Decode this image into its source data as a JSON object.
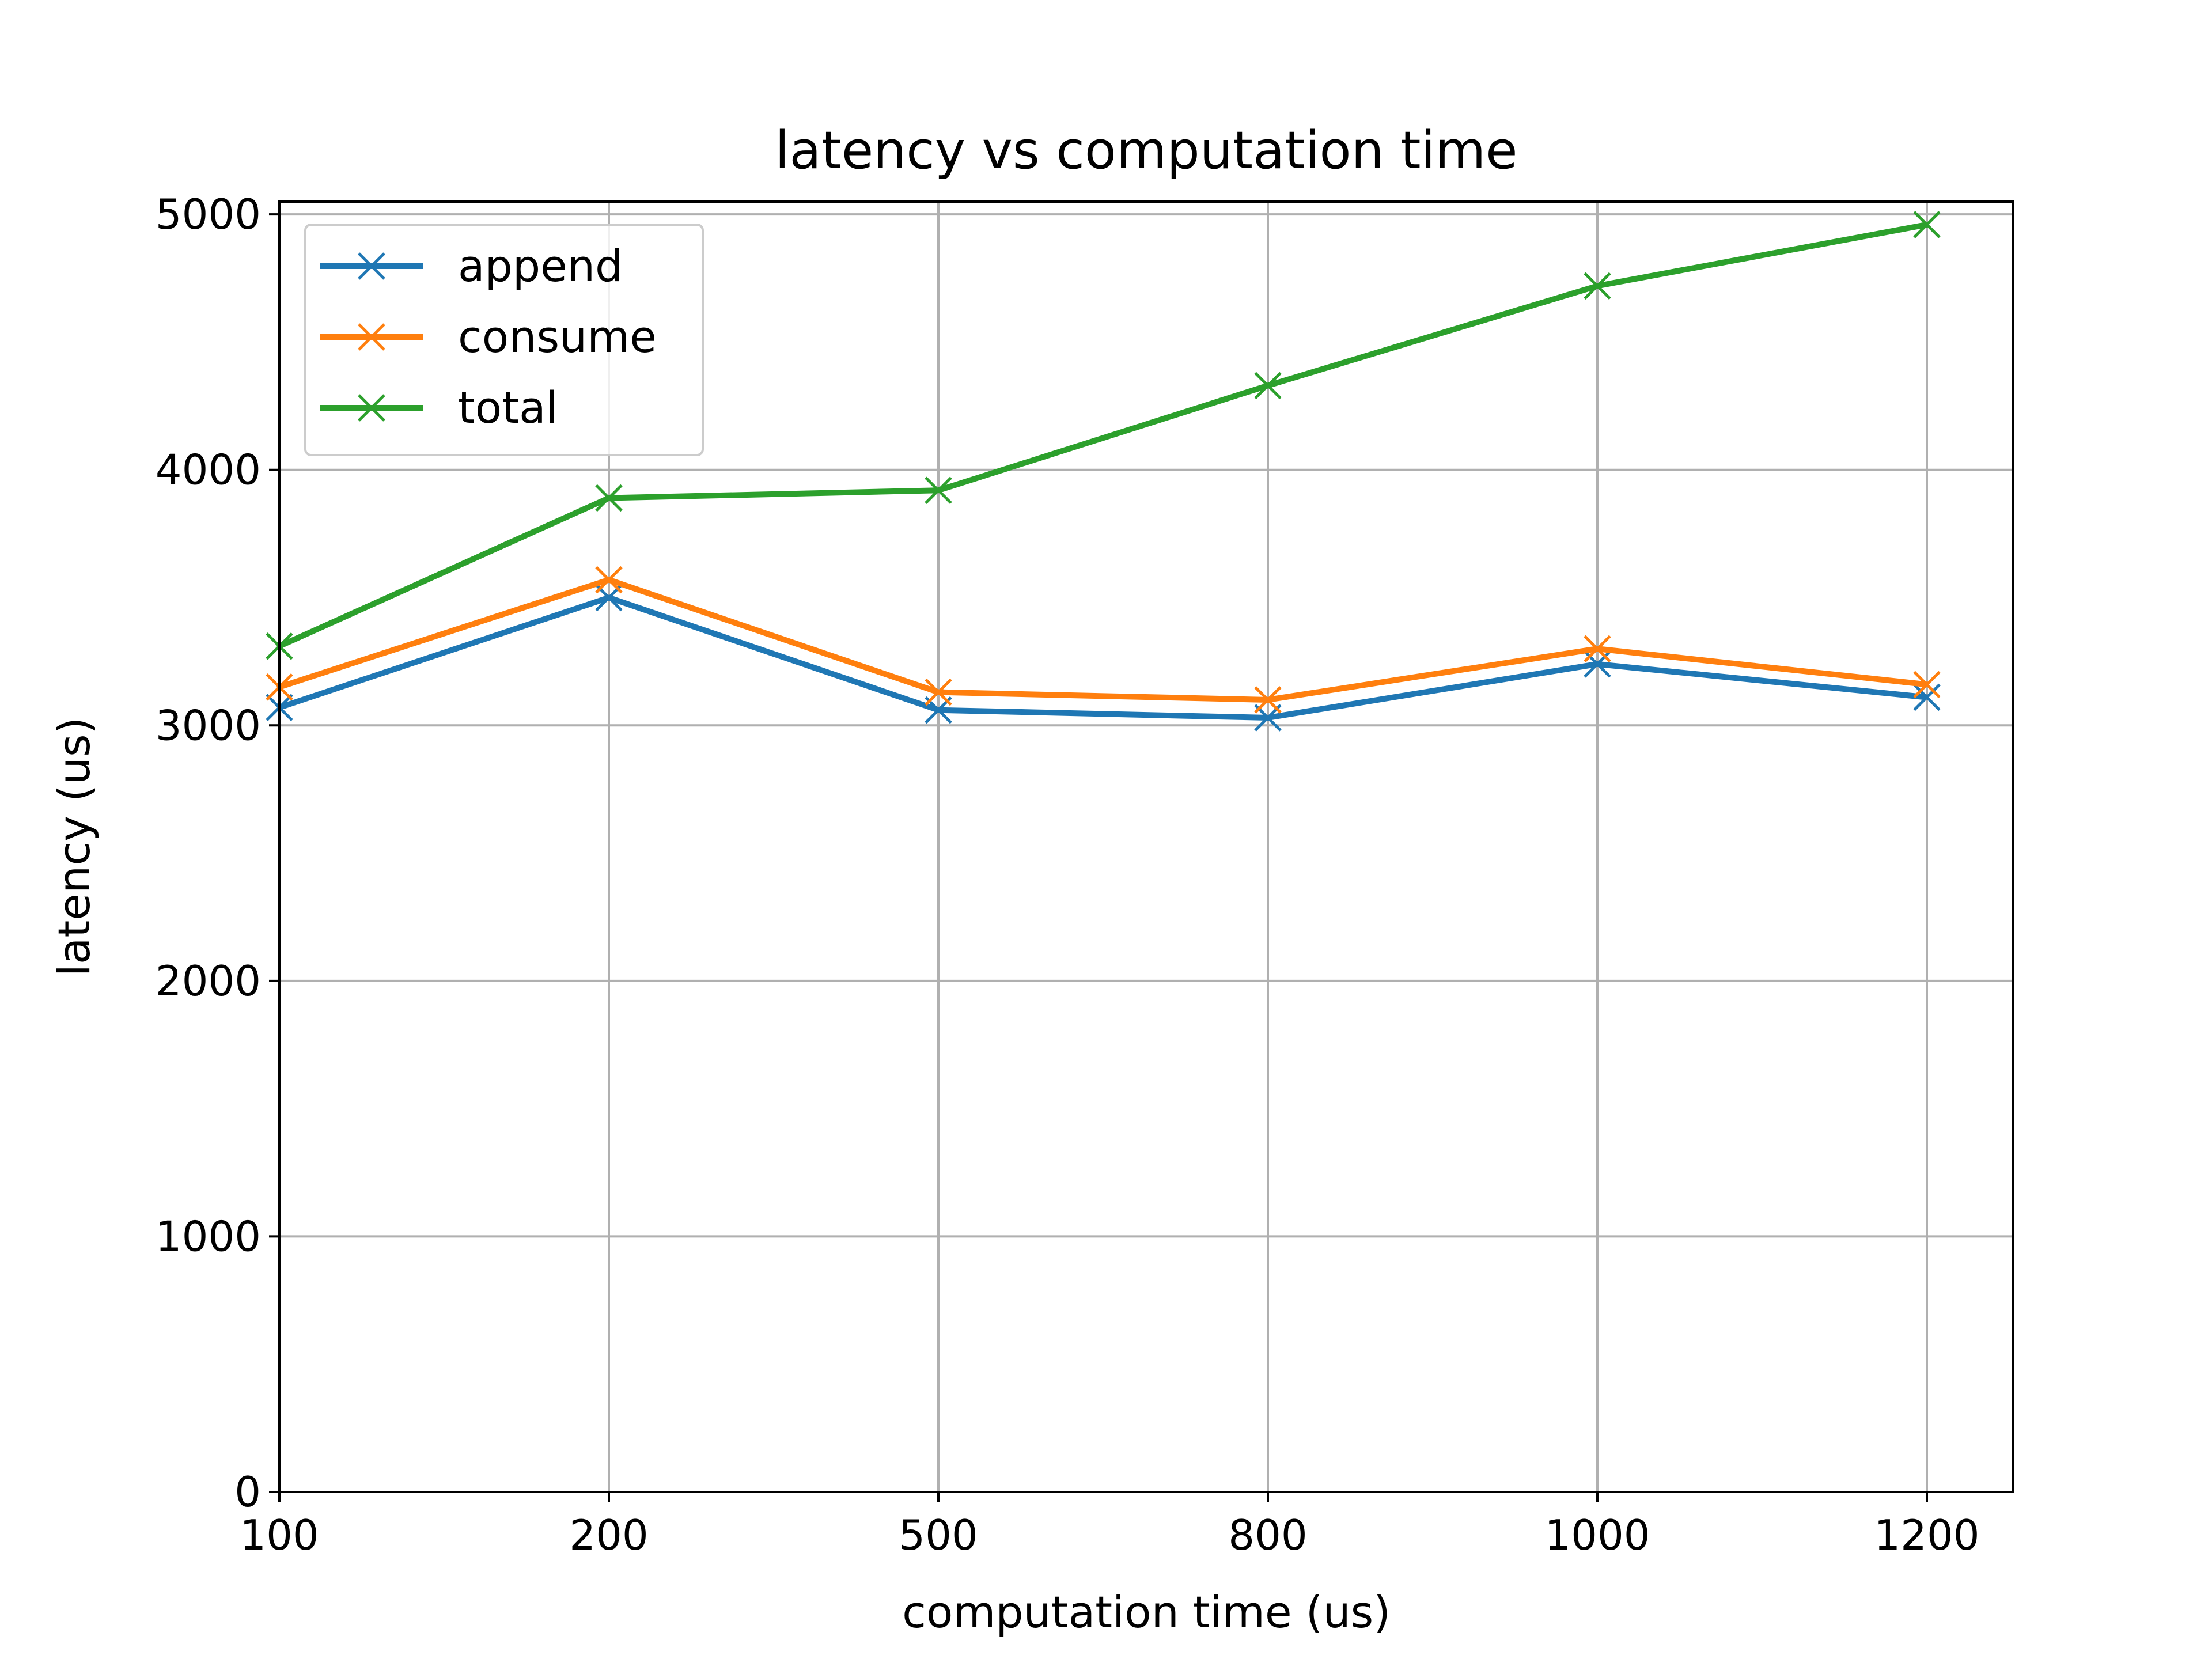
{
  "chart_data": {
    "type": "line",
    "title": "latency vs computation time",
    "xlabel": "computation time (us)",
    "ylabel": "latency (us)",
    "categories": [
      "100",
      "200",
      "500",
      "800",
      "1000",
      "1200"
    ],
    "ylim": [
      0,
      5050
    ],
    "yticks": [
      0,
      1000,
      2000,
      3000,
      4000,
      5000
    ],
    "grid": true,
    "legend_position": "top-left",
    "marker": "x",
    "series": [
      {
        "name": "append",
        "color": "#1f77b4",
        "values": [
          3070,
          3500,
          3060,
          3030,
          3240,
          3110
        ]
      },
      {
        "name": "consume",
        "color": "#ff7f0e",
        "values": [
          3150,
          3570,
          3130,
          3100,
          3300,
          3160
        ]
      },
      {
        "name": "total",
        "color": "#2ca02c",
        "values": [
          3310,
          3890,
          3920,
          4330,
          4720,
          4960
        ]
      }
    ]
  }
}
